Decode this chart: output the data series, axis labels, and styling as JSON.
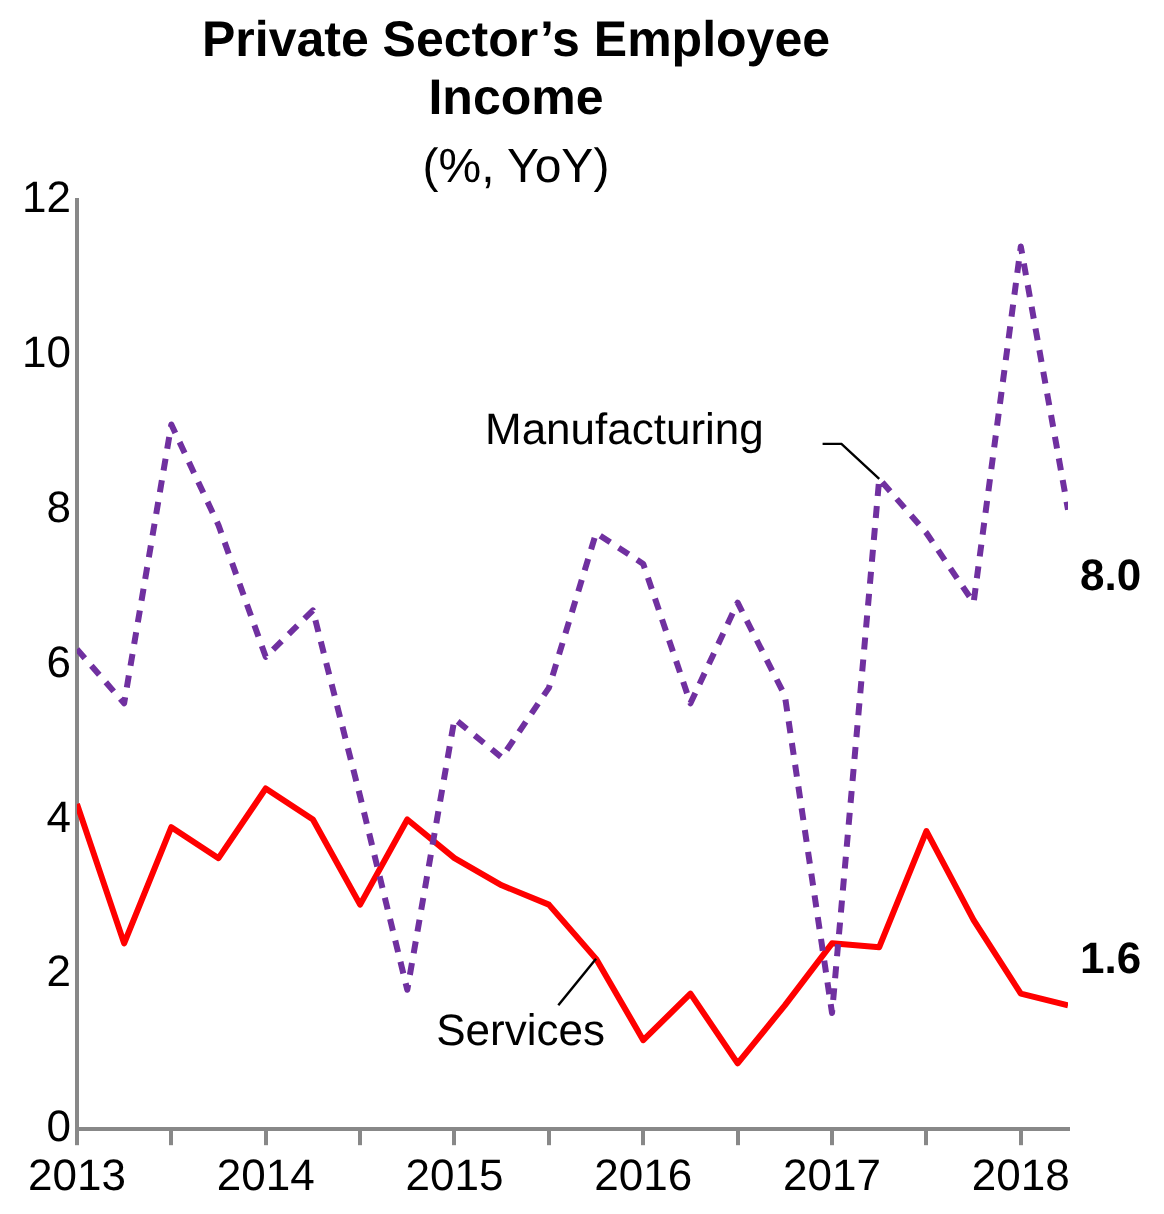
{
  "chart_data": {
    "type": "line",
    "title": "Private Sector’s Employee Income",
    "subtitle": "(%, YoY)",
    "x": [
      2013,
      2013.25,
      2013.5,
      2013.75,
      2014,
      2014.25,
      2014.5,
      2014.75,
      2015,
      2015.25,
      2015.5,
      2015.75,
      2016,
      2016.25,
      2016.5,
      2016.75,
      2017,
      2017.25,
      2017.5,
      2017.75,
      2018,
      2018.25
    ],
    "series": [
      {
        "name": "Manufacturing",
        "color": "#7030a0",
        "line_style": "dashed",
        "values": [
          6.2,
          5.5,
          9.1,
          7.8,
          6.1,
          6.7,
          4.3,
          1.8,
          5.3,
          4.8,
          5.7,
          7.7,
          7.3,
          5.5,
          6.8,
          5.6,
          1.5,
          8.4,
          7.7,
          6.8,
          11.4,
          8.0
        ],
        "value_labels": [
          null,
          null,
          null,
          null,
          null,
          null,
          null,
          null,
          null,
          null,
          null,
          null,
          null,
          null,
          null,
          null,
          null,
          null,
          null,
          null,
          null,
          "8.0"
        ]
      },
      {
        "name": "Services",
        "color": "#ff0000",
        "line_style": "solid",
        "values": [
          4.2,
          2.4,
          3.9,
          3.5,
          4.4,
          4.0,
          2.9,
          4.0,
          3.5,
          3.15,
          2.9,
          2.2,
          1.15,
          1.75,
          0.85,
          1.6,
          2.4,
          2.35,
          3.85,
          2.7,
          1.75,
          1.6
        ],
        "value_labels": [
          null,
          null,
          null,
          null,
          null,
          null,
          null,
          null,
          null,
          null,
          null,
          null,
          null,
          null,
          null,
          null,
          null,
          null,
          null,
          null,
          null,
          "1.6"
        ]
      }
    ],
    "xlim": [
      2013,
      2018.25
    ],
    "xticks": [
      2013,
      {
        "value": 2013.5,
        "label": null
      },
      2014,
      {
        "value": 2014.5,
        "label": null
      },
      2015,
      {
        "value": 2015.5,
        "label": null
      },
      2016,
      {
        "value": 2016.5,
        "label": null
      },
      2017,
      {
        "value": 2017.5,
        "label": null
      },
      2018
    ],
    "ylim": [
      0,
      12
    ],
    "yticks": [
      0,
      2,
      4,
      6,
      8,
      10,
      12
    ],
    "grid": false,
    "legend": false,
    "marker": "none"
  }
}
